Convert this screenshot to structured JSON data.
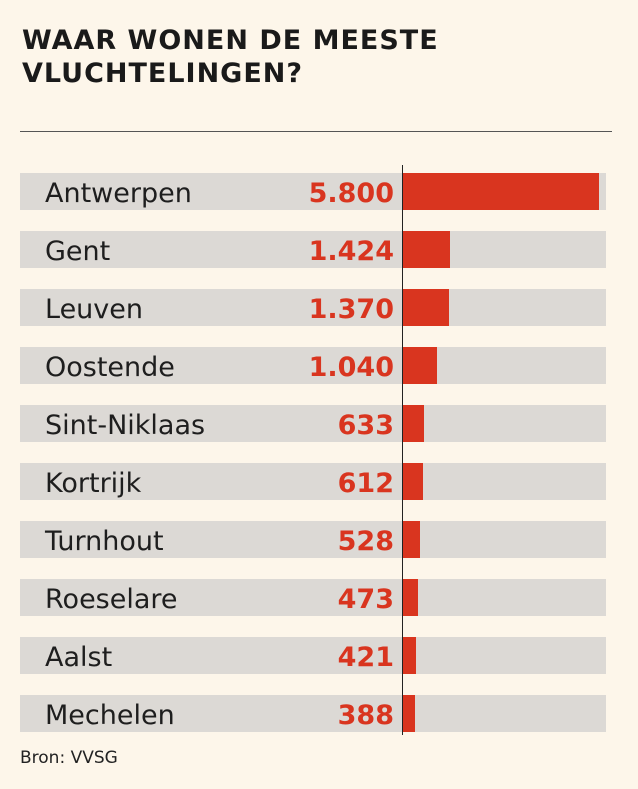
{
  "title": "WAAR WONEN DE MEESTE VLUCHTELINGEN?",
  "source": "Bron: VVSG",
  "colors": {
    "bar": "#d9351f",
    "row_background": "#dcd9d5",
    "page_background": "#fdf6ea"
  },
  "chart_data": {
    "type": "bar",
    "orientation": "horizontal",
    "title": "WAAR WONEN DE MEESTE VLUCHTELINGEN?",
    "categories": [
      "Antwerpen",
      "Gent",
      "Leuven",
      "Oostende",
      "Sint-Niklaas",
      "Kortrijk",
      "Turnhout",
      "Roeselare",
      "Aalst",
      "Mechelen"
    ],
    "values": [
      5800,
      1424,
      1370,
      1040,
      633,
      612,
      528,
      473,
      421,
      388
    ],
    "value_labels": [
      "5.800",
      "1.424",
      "1.370",
      "1.040",
      "633",
      "612",
      "528",
      "473",
      "421",
      "388"
    ],
    "grid": false
  }
}
